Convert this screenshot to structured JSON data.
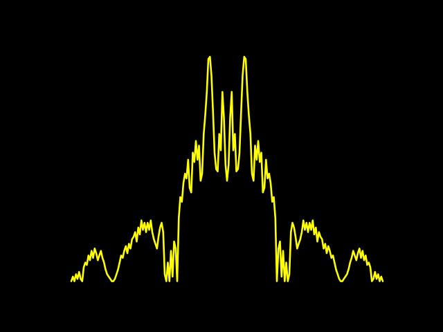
{
  "chart_data": {
    "type": "line",
    "title": "",
    "xlabel": "",
    "ylabel": "",
    "grid": false,
    "legend": "none",
    "background_color": "#000000",
    "line_color": "#ffff00",
    "xlim": [
      0,
      100
    ],
    "ylim": [
      0,
      100
    ],
    "series": [
      {
        "x": [
          0,
          0.5,
          1,
          1.5,
          2,
          2.5,
          3,
          3.5,
          4,
          4.5,
          5,
          5.5,
          6,
          6.5,
          7,
          7.5,
          8,
          8.5,
          9,
          9.5,
          10,
          10.5,
          11,
          11.5,
          12,
          12.5,
          13,
          13.5,
          14,
          14.5,
          15,
          15.5,
          16,
          16.5,
          17,
          17.5,
          18,
          18.5,
          19,
          19.5,
          20,
          20.5,
          21,
          21.5,
          22,
          22.5,
          23,
          23.5,
          24,
          24.5,
          25,
          25.5,
          26,
          26.5,
          27,
          27.5,
          28,
          28.5,
          29,
          29.5,
          30,
          30.5,
          31,
          31.5,
          32,
          32.5,
          33,
          33.5,
          34,
          34.5,
          35,
          35.5,
          36,
          36.5,
          37,
          37.5,
          38,
          38.5,
          39,
          39.5,
          40,
          40.5,
          41,
          41.5,
          42,
          42.5,
          43,
          43.5,
          44,
          44.5,
          45,
          45.5,
          46,
          46.5,
          47,
          47.5,
          48,
          48.5,
          49,
          49.5,
          50
        ],
        "y": [
          1,
          3,
          1,
          4,
          2,
          5,
          2,
          1,
          7,
          9,
          8,
          12,
          10,
          14,
          11,
          15,
          13,
          10,
          12,
          14,
          11,
          9,
          6,
          4,
          3,
          2,
          1,
          1,
          2,
          4,
          6,
          9,
          12,
          11,
          14,
          16,
          13,
          17,
          15,
          19,
          20,
          22,
          18,
          24,
          21,
          27,
          23,
          26,
          22,
          26,
          23,
          27,
          22,
          19,
          17,
          15,
          20,
          24,
          26,
          22,
          4,
          1,
          9,
          1,
          14,
          3,
          18,
          15,
          1,
          28,
          37,
          35,
          43,
          47,
          45,
          53,
          41,
          39,
          56,
          52,
          61,
          53,
          59,
          44,
          47,
          64,
          72,
          82,
          96,
          97,
          89,
          73,
          56,
          49,
          48,
          64,
          57,
          82,
          71,
          51,
          44
        ]
      }
    ]
  }
}
